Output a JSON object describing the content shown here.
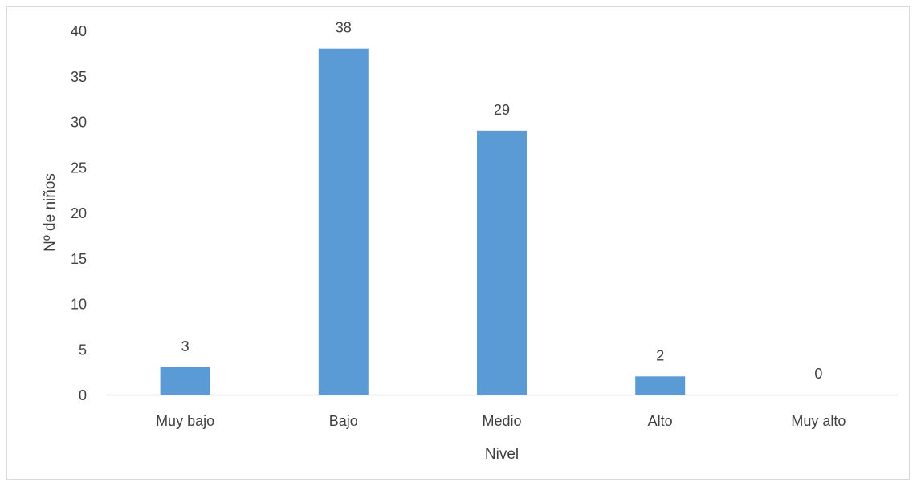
{
  "chart_data": {
    "type": "bar",
    "categories": [
      "Muy bajo",
      "Bajo",
      "Medio",
      "Alto",
      "Muy alto"
    ],
    "values": [
      3,
      38,
      29,
      2,
      0
    ],
    "data_labels": [
      "3",
      "38",
      "29",
      "2",
      "0"
    ],
    "xlabel": "Nivel",
    "ylabel": "Nº de niños",
    "ylim": [
      0,
      40
    ],
    "yticks": [
      "0",
      "5",
      "10",
      "15",
      "20",
      "25",
      "30",
      "35",
      "40"
    ],
    "grid": false,
    "legend": "none"
  },
  "colors": {
    "bar": "#5b9bd5",
    "axis": "#d9d9d9",
    "text": "#404040"
  }
}
